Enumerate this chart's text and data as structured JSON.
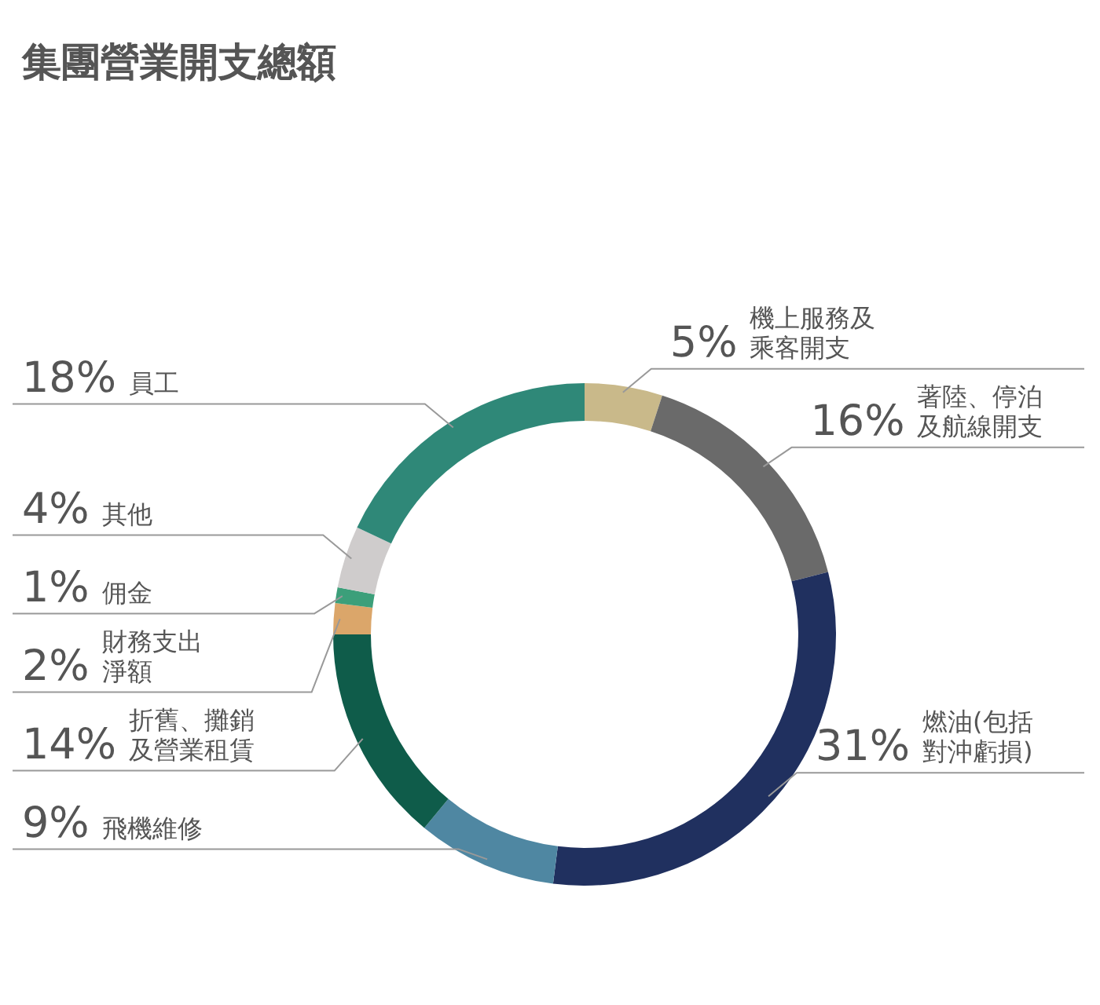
{
  "chart_data": {
    "type": "donut",
    "title": "集團營業開支總額",
    "categories": [
      "機上服務及乘客開支",
      "著陸、停泊及航線開支",
      "燃油(包括對沖虧損)",
      "飛機維修",
      "折舊、攤銷及營業租賃",
      "財務支出淨額",
      "佣金",
      "其他",
      "員工"
    ],
    "values": [
      5,
      16,
      31,
      9,
      14,
      2,
      1,
      4,
      18
    ],
    "value_labels": [
      "5%",
      "16%",
      "31%",
      "9%",
      "14%",
      "2%",
      "1%",
      "4%",
      "18%"
    ],
    "colors": [
      "#c9b98a",
      "#6a6a6a",
      "#20305f",
      "#4f87a2",
      "#0f5c4a",
      "#dba66a",
      "#3c9f7a",
      "#cfcccc",
      "#2f8878"
    ]
  }
}
